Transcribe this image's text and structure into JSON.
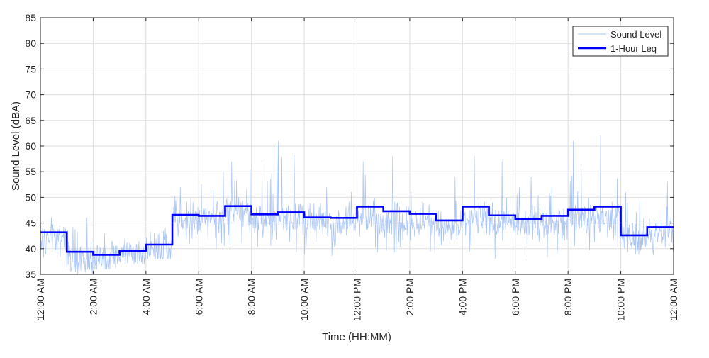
{
  "chart_data": {
    "type": "line",
    "xlabel": "Time (HH:MM)",
    "ylabel": "Sound Level (dBA)",
    "xlim": [
      "12:00 AM",
      "12:00 AM (next day)"
    ],
    "ylim": [
      35,
      85
    ],
    "x_tick_labels": [
      "12:00 AM",
      "2:00 AM",
      "4:00 AM",
      "6:00 AM",
      "8:00 AM",
      "10:00 AM",
      "12:00 PM",
      "2:00 PM",
      "4:00 PM",
      "6:00 PM",
      "8:00 PM",
      "10:00 PM",
      "12:00 AM"
    ],
    "y_ticks": [
      35,
      40,
      45,
      50,
      55,
      60,
      65,
      70,
      75,
      80,
      85
    ],
    "grid": true,
    "legend_position": "top-right",
    "series": [
      {
        "name": "Sound Level",
        "style": "thin line",
        "color": "#a9c4f5",
        "hourly_profile": {
          "hours": [
            "12:00 AM",
            "1:00 AM",
            "2:00 AM",
            "3:00 AM",
            "4:00 AM",
            "5:00 AM",
            "6:00 AM",
            "7:00 AM",
            "8:00 AM",
            "9:00 AM",
            "10:00 AM",
            "11:00 AM",
            "12:00 PM",
            "1:00 PM",
            "2:00 PM",
            "3:00 PM",
            "4:00 PM",
            "5:00 PM",
            "6:00 PM",
            "7:00 PM",
            "8:00 PM",
            "9:00 PM",
            "10:00 PM",
            "11:00 PM"
          ],
          "min": [
            38,
            35,
            36,
            37,
            38,
            41,
            40,
            40,
            40,
            39,
            38,
            38,
            39,
            39,
            39,
            38,
            38,
            38,
            38,
            38,
            39,
            39,
            38,
            38
          ],
          "typical": [
            42,
            38,
            38,
            39,
            40,
            46,
            46,
            47,
            46,
            46,
            45,
            45,
            46,
            46,
            45,
            44,
            46,
            45,
            45,
            45,
            46,
            46,
            42,
            43
          ],
          "max": [
            49,
            46,
            43,
            42,
            44,
            52,
            55,
            57,
            60,
            61,
            52,
            51,
            57,
            58,
            51,
            54,
            58,
            57,
            54,
            52,
            61,
            62,
            51,
            53
          ]
        }
      },
      {
        "name": "1-Hour Leq",
        "style": "step",
        "color": "#0000ff",
        "x": [
          "12:00 AM",
          "1:00 AM",
          "2:00 AM",
          "3:00 AM",
          "4:00 AM",
          "5:00 AM",
          "6:00 AM",
          "7:00 AM",
          "8:00 AM",
          "9:00 AM",
          "10:00 AM",
          "11:00 AM",
          "12:00 PM",
          "1:00 PM",
          "2:00 PM",
          "3:00 PM",
          "4:00 PM",
          "5:00 PM",
          "6:00 PM",
          "7:00 PM",
          "8:00 PM",
          "9:00 PM",
          "10:00 PM",
          "11:00 PM"
        ],
        "values": [
          43.2,
          39.4,
          38.8,
          39.6,
          40.8,
          46.6,
          46.4,
          48.3,
          46.7,
          47.1,
          46.1,
          46.0,
          48.2,
          47.3,
          46.8,
          45.5,
          48.2,
          46.5,
          45.8,
          46.4,
          47.6,
          48.2,
          42.6,
          44.2
        ]
      }
    ]
  },
  "colors": {
    "raw_line": "#a9c4f5",
    "leq_line": "#0000ff",
    "grid": "#dedede",
    "axis": "#262626"
  }
}
